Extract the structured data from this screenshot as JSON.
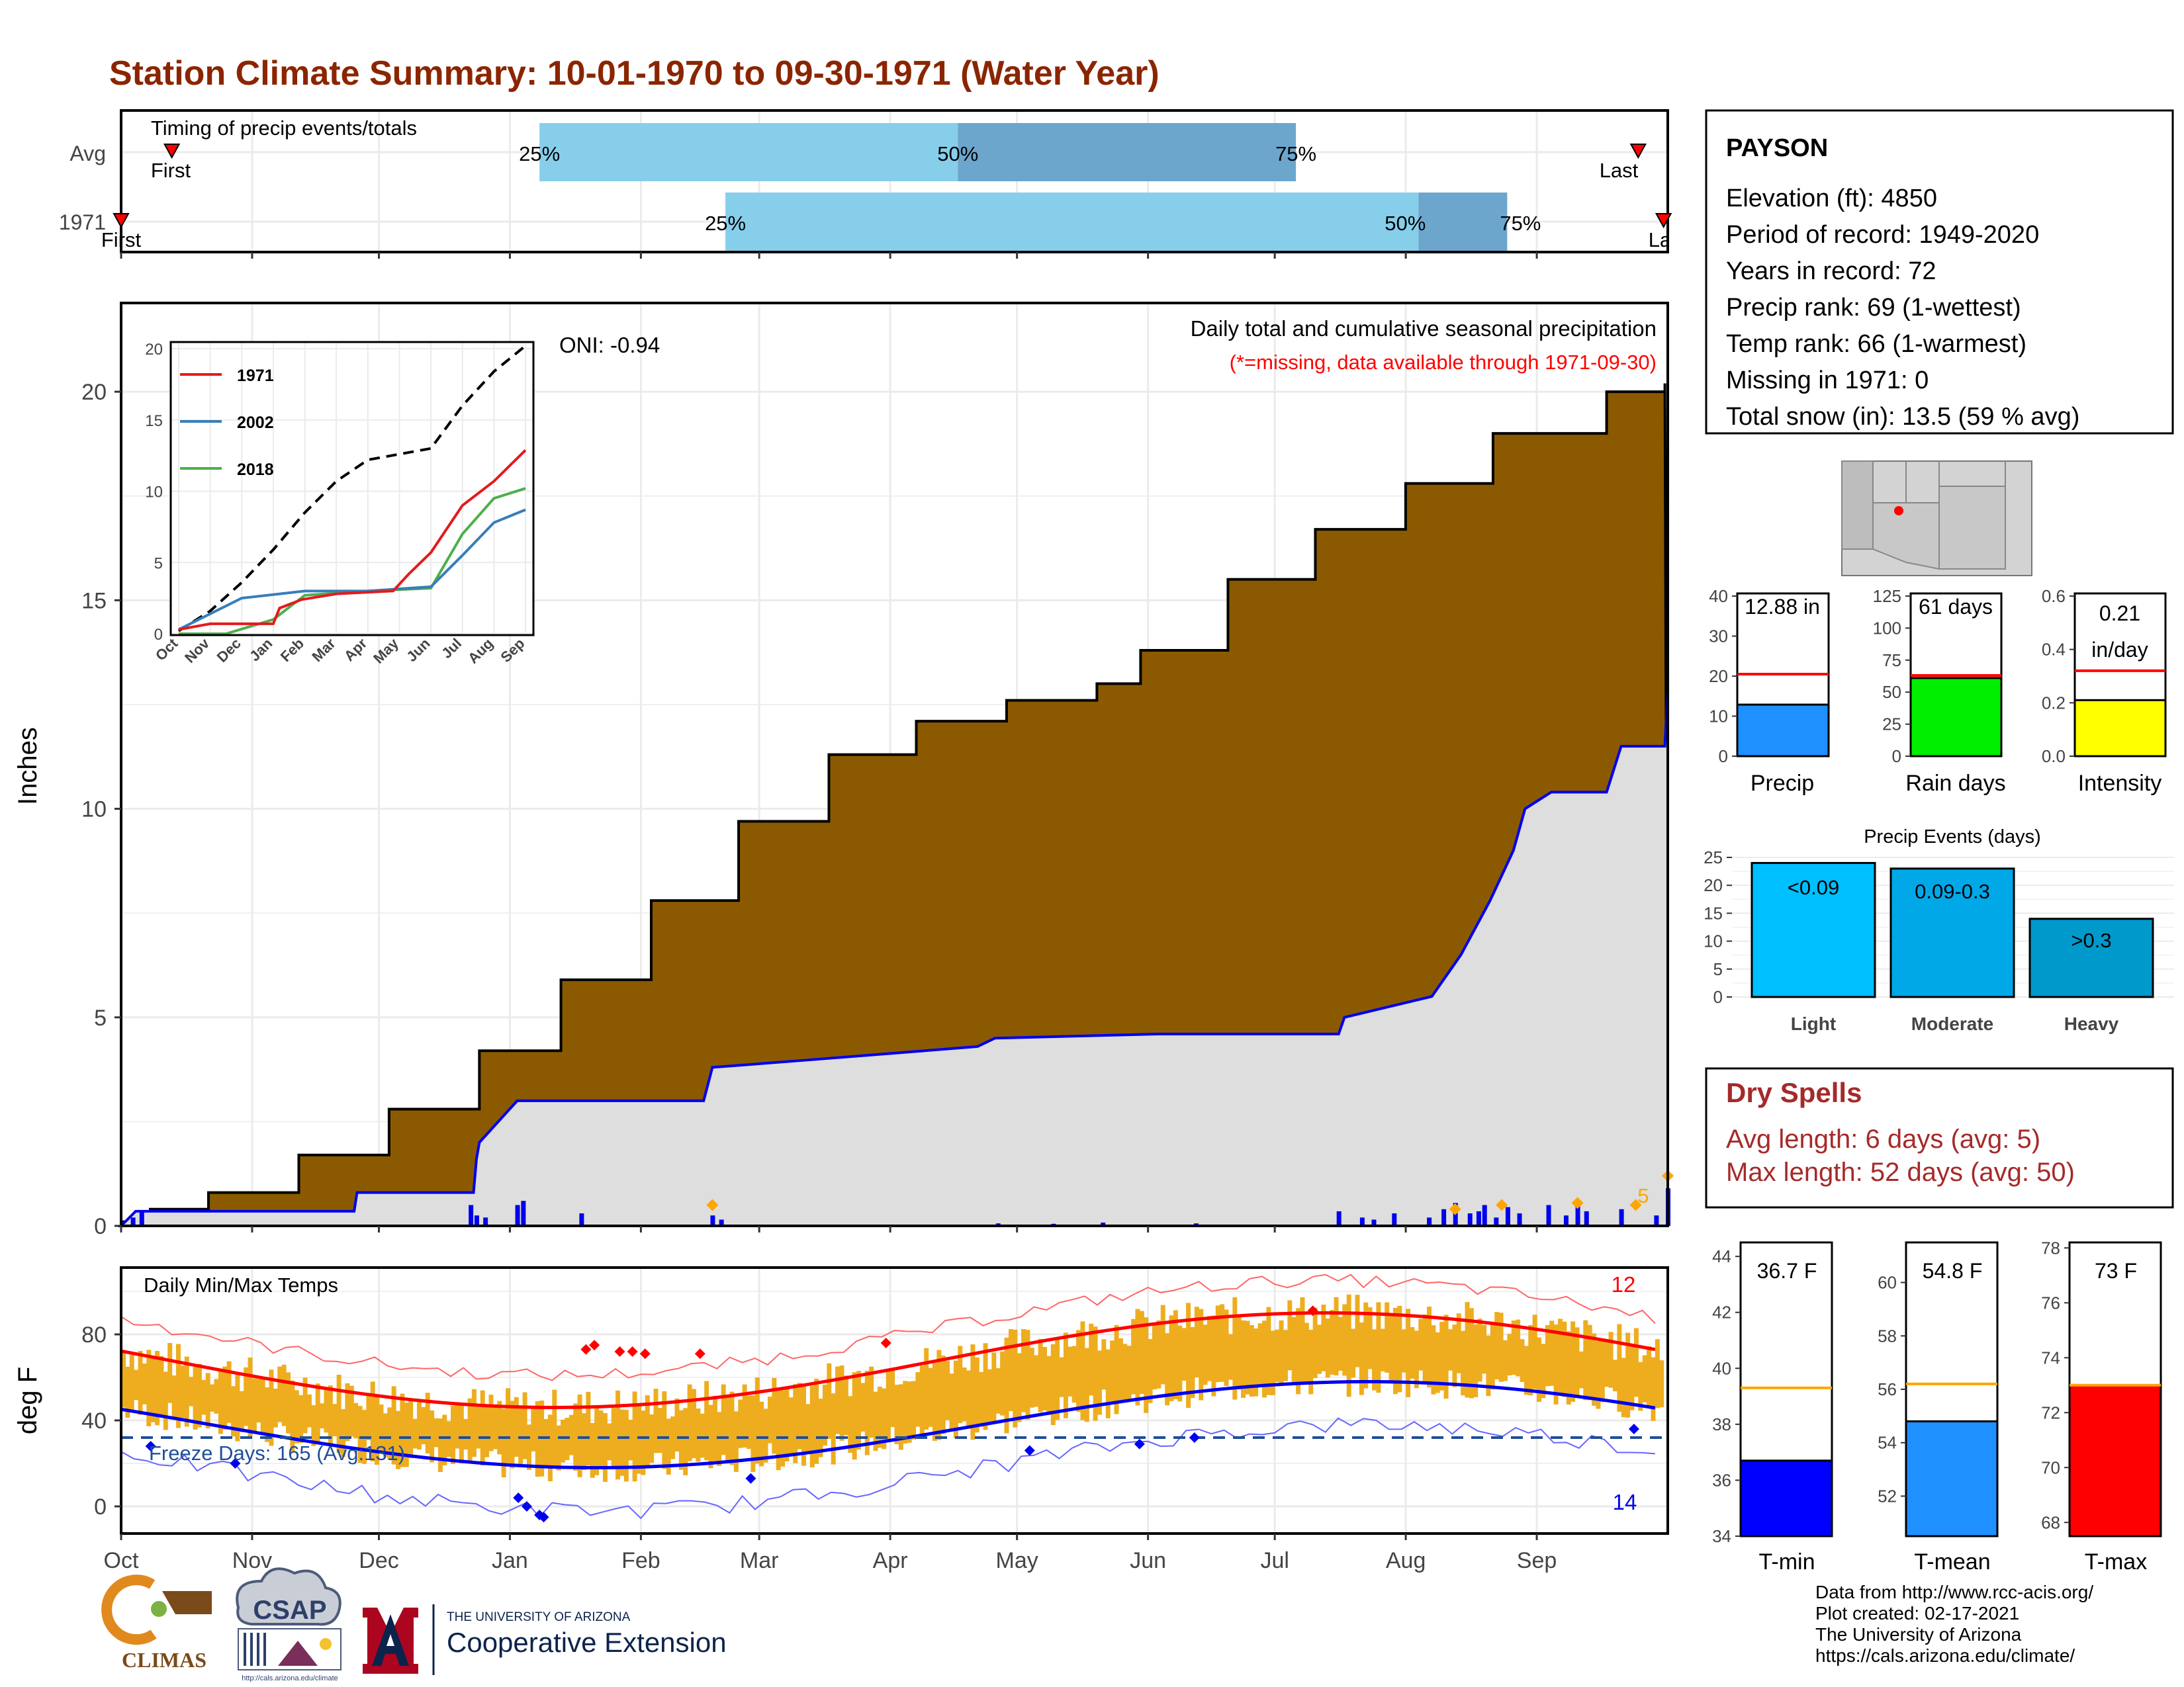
{
  "title": "Station Climate Summary: 10-01-1970 to 09-30-1971 (Water Year)",
  "colors": {
    "title": "#8B2500",
    "precip_fill": "#8B5A00",
    "normal_fill": "#DEDEDE",
    "blue": "#0000EE",
    "timing_light": "#87CEEB",
    "timing_dark": "#6CA6CD",
    "temp_bar": "#EEAD1E",
    "red": "#FF0000",
    "rain_days": "#00EE00",
    "intensity": "#FFFF00",
    "light": "#00BFFF",
    "moderate": "#00A8E8",
    "heavy": "#0099CC",
    "tmin": "#0000FF",
    "tmean": "#1E90FF",
    "tmax": "#FF0000",
    "orange": "#FFA500",
    "dry": "#A52A2A"
  },
  "months": [
    "Oct",
    "Nov",
    "Dec",
    "Jan",
    "Feb",
    "Mar",
    "Apr",
    "May",
    "Jun",
    "Jul",
    "Aug",
    "Sep"
  ],
  "timing": {
    "title": "Timing of precip events/totals",
    "rows": [
      {
        "label": "Avg",
        "first": "First",
        "last": "Last",
        "first_day": 12,
        "last_day": 359,
        "p25": 99,
        "p50": 198,
        "p75": 278
      },
      {
        "label": "1971",
        "first": "First",
        "last": "Last",
        "first_day": 0,
        "last_day": 365,
        "p25": 143,
        "p50": 307,
        "p75": 328
      }
    ],
    "p25_label": "25%",
    "p50_label": "50%",
    "p75_label": "75%"
  },
  "precip_panel": {
    "ylabel": "Inches",
    "yticks": [
      0,
      5,
      10,
      15,
      20
    ],
    "ylim": [
      0,
      22
    ],
    "oni": "ONI: -0.94",
    "heading": "Daily total and cumulative seasonal precipitation",
    "note": "(*=missing, data available through 1971-09-30)",
    "count_label": "5"
  },
  "inset": {
    "months": [
      "Oct",
      "Nov",
      "Dec",
      "Jan",
      "Feb",
      "Mar",
      "Apr",
      "May",
      "Jun",
      "Jul",
      "Aug",
      "Sep"
    ],
    "yticks": [
      0,
      5,
      10,
      15,
      20
    ],
    "legend": [
      "1971",
      "2002",
      "2018"
    ]
  },
  "temp_panel": {
    "ylabel": "deg F",
    "title": "Daily Min/Max Temps",
    "yticks": [
      0,
      40,
      80
    ],
    "freeze": "Freeze Days: 165 (Avg:131)",
    "high_count": "12",
    "low_count": "14"
  },
  "station": {
    "name": "PAYSON",
    "lines": [
      "Elevation (ft): 4850",
      "Period of record: 1949-2020",
      "Years in record: 72",
      "Precip rank: 69 (1-wettest)",
      "Temp rank: 66 (1-warmest)",
      "Missing in 1971: 0",
      "Total snow (in): 13.5 (59 % avg)"
    ]
  },
  "small_bars": [
    {
      "label": "Precip",
      "value_text": "12.88 in",
      "value": 12.88,
      "avg": 20.5,
      "max": 40,
      "ticks": [
        0,
        10,
        20,
        30,
        40
      ]
    },
    {
      "label": "Rain days",
      "value_text": "61 days",
      "value": 61,
      "avg": 63,
      "max": 125,
      "ticks": [
        0,
        25,
        50,
        75,
        100,
        125
      ]
    },
    {
      "label": "Intensity",
      "value_text": "0.21",
      "value_text2": "in/day",
      "value": 0.21,
      "avg": 0.32,
      "max": 0.6,
      "ticks": [
        0.0,
        0.2,
        0.4,
        0.6
      ],
      "tick_labels": [
        "0.0",
        "0.2",
        "0.4",
        "0.6"
      ]
    }
  ],
  "events": {
    "title": "Precip Events (days)",
    "yticks": [
      0,
      5,
      10,
      15,
      20,
      25
    ],
    "bars": [
      {
        "category": "Light",
        "label": "<0.09",
        "value": 24
      },
      {
        "category": "Moderate",
        "label": "0.09-0.3",
        "value": 23
      },
      {
        "category": "Heavy",
        "label": ">0.3",
        "value": 14
      }
    ]
  },
  "dry_spells": {
    "title": "Dry Spells",
    "avg": "Avg length: 6 days (avg: 5)",
    "max": "Max length: 52 days (avg: 50)"
  },
  "temp_bars": [
    {
      "label": "T-min",
      "value_text": "36.7 F",
      "value": 36.7,
      "avg": 39.3,
      "min": 34,
      "max": 44.5,
      "ticks": [
        34,
        36,
        38,
        40,
        42,
        44
      ]
    },
    {
      "label": "T-mean",
      "value_text": "54.8 F",
      "value": 54.8,
      "avg": 56.2,
      "min": 50.5,
      "max": 61.5,
      "ticks": [
        52,
        54,
        56,
        58,
        60
      ]
    },
    {
      "label": "T-max",
      "value_text": "73 F",
      "value": 73,
      "avg": 73.0,
      "min": 67.5,
      "max": 78.2,
      "ticks": [
        68,
        70,
        72,
        74,
        76,
        78
      ]
    }
  ],
  "footer": {
    "lines": [
      "Data from http://www.rcc-acis.org/",
      "Plot created: 02-17-2021",
      "The University of Arizona",
      "https://cals.arizona.edu/climate/"
    ],
    "logos": {
      "climas": "CLIMAS",
      "csap": "CSAP",
      "csap_url": "http://cals.arizona.edu/climate",
      "ua_small": "THE UNIVERSITY OF ARIZONA",
      "coop": "Cooperative Extension"
    }
  },
  "chart_data": {
    "type": "area",
    "title": "Daily total and cumulative seasonal precipitation",
    "ylabel": "Inches",
    "x": [
      "Oct",
      "Nov",
      "Dec",
      "Jan",
      "Feb",
      "Mar",
      "Apr",
      "May",
      "Jun",
      "Jul",
      "Aug",
      "Sep"
    ],
    "ylim": [
      0,
      22
    ],
    "series": [
      {
        "name": "cumulative normal",
        "points": [
          [
            0,
            0.1
          ],
          [
            10,
            0.4
          ],
          [
            30,
            0.8
          ],
          [
            61,
            1.7
          ],
          [
            92,
            2.8
          ],
          [
            123,
            4.2
          ],
          [
            151,
            5.9
          ],
          [
            182,
            7.8
          ],
          [
            212,
            9.7
          ],
          [
            243,
            11.3
          ],
          [
            273,
            12.1
          ],
          [
            304,
            12.6
          ],
          [
            335,
            13.0
          ],
          [
            350,
            13.8
          ],
          [
            380,
            15.5
          ],
          [
            410,
            16.7
          ],
          [
            441,
            17.8
          ],
          [
            471,
            19.0
          ],
          [
            510,
            20.0
          ],
          [
            530,
            20.2
          ]
        ]
      },
      {
        "name": "cumulative 1971",
        "points": [
          [
            0,
            0
          ],
          [
            5,
            0.35
          ],
          [
            80,
            0.35
          ],
          [
            81,
            0.8
          ],
          [
            121,
            0.8
          ],
          [
            122,
            1.6
          ],
          [
            123,
            2.0
          ],
          [
            136,
            3.0
          ],
          [
            158,
            3.0
          ],
          [
            200,
            3.0
          ],
          [
            203,
            3.8
          ],
          [
            240,
            4.0
          ],
          [
            294,
            4.3
          ],
          [
            300,
            4.5
          ],
          [
            356,
            4.6
          ],
          [
            418,
            4.6
          ],
          [
            420,
            5.0
          ],
          [
            450,
            5.5
          ],
          [
            460,
            6.5
          ],
          [
            470,
            7.8
          ],
          [
            478,
            9.0
          ],
          [
            482,
            10.0
          ],
          [
            491,
            10.4
          ],
          [
            510,
            10.4
          ],
          [
            515,
            11.5
          ],
          [
            530,
            11.5
          ],
          [
            531,
            12.88
          ]
        ]
      },
      {
        "name": "inset 1971",
        "points": [
          [
            0,
            0.3
          ],
          [
            1,
            0.7
          ],
          [
            3,
            0.7
          ],
          [
            3.2,
            1.8
          ],
          [
            3.9,
            2.4
          ],
          [
            5,
            2.8
          ],
          [
            6.8,
            3
          ],
          [
            7.3,
            4.2
          ],
          [
            8,
            5.7
          ],
          [
            9,
            9
          ],
          [
            10,
            10.7
          ],
          [
            11,
            12.88
          ]
        ]
      },
      {
        "name": "inset 2002",
        "points": [
          [
            0,
            0.3
          ],
          [
            2,
            2.5
          ],
          [
            4,
            3.0
          ],
          [
            6,
            3.0
          ],
          [
            8,
            3.3
          ],
          [
            9,
            5.5
          ],
          [
            10,
            7.8
          ],
          [
            11,
            8.7
          ]
        ]
      },
      {
        "name": "inset 2018",
        "points": [
          [
            0,
            0
          ],
          [
            1.5,
            0
          ],
          [
            3,
            1.0
          ],
          [
            4,
            2.7
          ],
          [
            6,
            3.0
          ],
          [
            8,
            3.2
          ],
          [
            9,
            7.0
          ],
          [
            10,
            9.5
          ],
          [
            11,
            10.2
          ]
        ]
      },
      {
        "name": "inset normal",
        "points": [
          [
            0,
            0.2
          ],
          [
            1,
            1.6
          ],
          [
            2,
            3.6
          ],
          [
            3,
            5.9
          ],
          [
            4,
            8.5
          ],
          [
            5,
            10.7
          ],
          [
            6,
            12.2
          ],
          [
            7,
            12.6
          ],
          [
            8,
            13.0
          ],
          [
            9,
            16.0
          ],
          [
            10,
            18.4
          ],
          [
            11,
            20.2
          ]
        ]
      }
    ]
  }
}
